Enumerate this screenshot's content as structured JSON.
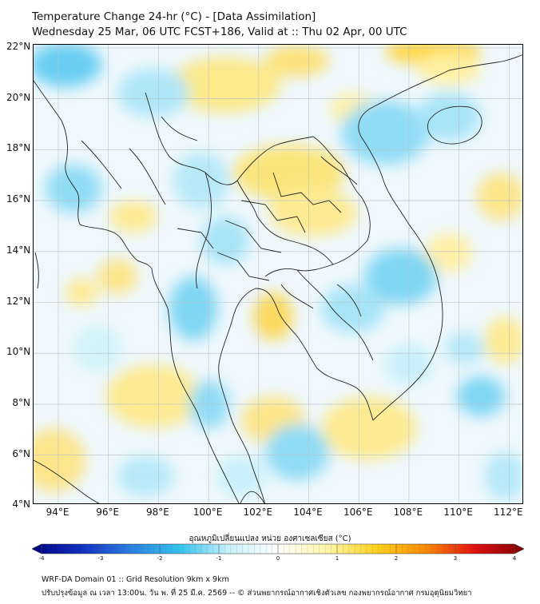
{
  "title": {
    "line1": "Temperature Change 24-hr (°C) - [Data Assimilation]",
    "line2": "Wednesday 25 Mar, 06 UTC FCST+186, Valid at :: Thu 02 Apr, 00 UTC"
  },
  "axes": {
    "lat_labels": [
      "22°N",
      "20°N",
      "18°N",
      "16°N",
      "14°N",
      "12°N",
      "10°N",
      "8°N",
      "6°N",
      "4°N"
    ],
    "lon_labels": [
      "94°E",
      "96°E",
      "98°E",
      "100°E",
      "102°E",
      "104°E",
      "106°E",
      "108°E",
      "110°E",
      "112°E"
    ]
  },
  "colorbar": {
    "title": "อุณหภูมิเปลี่ยนแปลง หน่วย องศาเซลเซียส (°C)",
    "ticks": [
      "-4",
      "-3",
      "-2",
      "-1",
      "0",
      "1",
      "2",
      "3",
      "4"
    ],
    "colors": [
      "#000080",
      "#1030c0",
      "#2b7fe0",
      "#33c3ef",
      "#c9f1fb",
      "#ffffff",
      "#fff6a8",
      "#ffd21e",
      "#ff8a00",
      "#e01010",
      "#800000"
    ]
  },
  "footer": {
    "line1": "WRF-DA Domain 01 :: Grid Resolution 9km x 9km",
    "line2": "ปรับปรุงข้อมูล ณ เวลา 13:00น. วัน พ. ที่ 25 มี.ค. 2569 -- © ส่วนพยากรณ์อากาศเชิงตัวเลข กองพยากรณ์อากาศ กรมอุตุนิยมวิทยา"
  }
}
